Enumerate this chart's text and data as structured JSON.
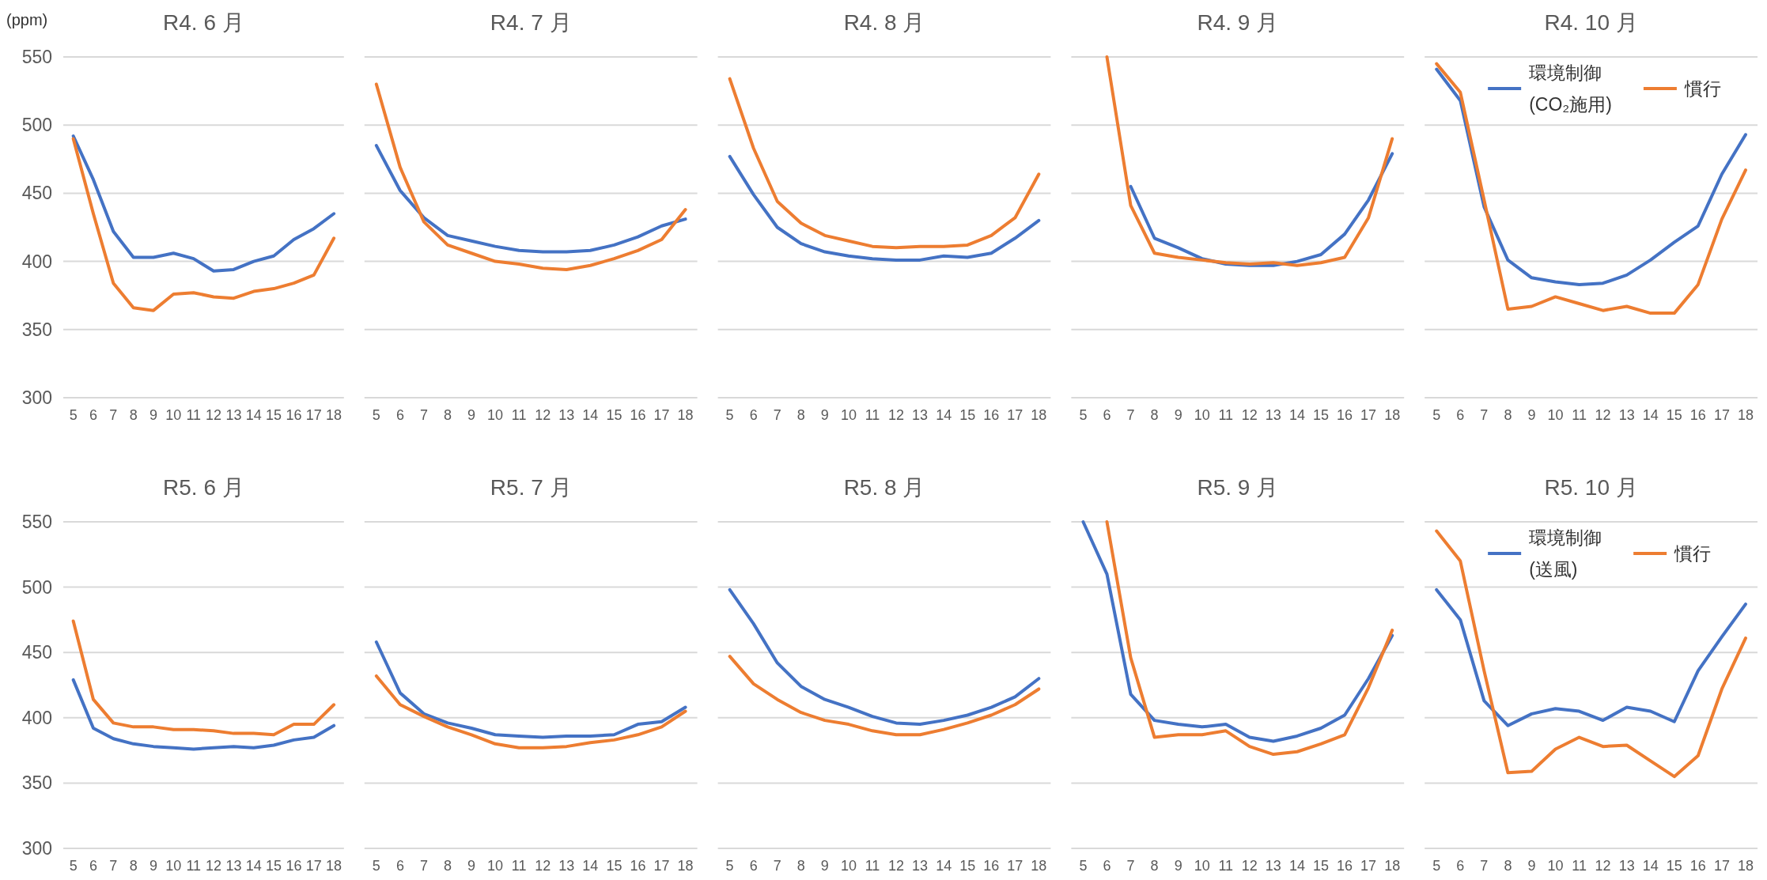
{
  "chart_data": [
    {
      "type": "line",
      "title": "R4. 6 月",
      "ylabel": "(ppm)",
      "categories": [
        "5",
        "6",
        "7",
        "8",
        "9",
        "10",
        "11",
        "12",
        "13",
        "14",
        "15",
        "16",
        "17",
        "18"
      ],
      "ylim": [
        300,
        550
      ],
      "yticks": [
        300,
        350,
        400,
        450,
        500,
        550
      ],
      "grid": "y",
      "series": [
        {
          "color": "#4472c4",
          "values": [
            492,
            460,
            422,
            403,
            403,
            406,
            402,
            393,
            394,
            400,
            404,
            416,
            424,
            435
          ]
        },
        {
          "color": "#ed7d31",
          "values": [
            490,
            435,
            384,
            366,
            364,
            376,
            377,
            374,
            373,
            378,
            380,
            384,
            390,
            417
          ]
        }
      ]
    },
    {
      "type": "line",
      "title": "R4. 7 月",
      "categories": [
        "5",
        "6",
        "7",
        "8",
        "9",
        "10",
        "11",
        "12",
        "13",
        "14",
        "15",
        "16",
        "17",
        "18"
      ],
      "ylim": [
        300,
        550
      ],
      "yticks": [
        300,
        350,
        400,
        450,
        500,
        550
      ],
      "grid": "y",
      "tick_labels": "x",
      "series": [
        {
          "color": "#4472c4",
          "values": [
            485,
            452,
            432,
            419,
            415,
            411,
            408,
            407,
            407,
            408,
            412,
            418,
            426,
            431
          ]
        },
        {
          "color": "#ed7d31",
          "values": [
            530,
            469,
            429,
            412,
            406,
            400,
            398,
            395,
            394,
            397,
            402,
            408,
            416,
            438
          ]
        }
      ]
    },
    {
      "type": "line",
      "title": "R4. 8 月",
      "categories": [
        "5",
        "6",
        "7",
        "8",
        "9",
        "10",
        "11",
        "12",
        "13",
        "14",
        "15",
        "16",
        "17",
        "18"
      ],
      "ylim": [
        300,
        550
      ],
      "yticks": [
        300,
        350,
        400,
        450,
        500,
        550
      ],
      "grid": "y",
      "tick_labels": "x",
      "series": [
        {
          "color": "#4472c4",
          "values": [
            477,
            449,
            425,
            413,
            407,
            404,
            402,
            401,
            401,
            404,
            403,
            406,
            417,
            430
          ]
        },
        {
          "color": "#ed7d31",
          "values": [
            534,
            483,
            444,
            428,
            419,
            415,
            411,
            410,
            411,
            411,
            412,
            419,
            432,
            464
          ]
        }
      ]
    },
    {
      "type": "line",
      "title": "R4. 9 月",
      "categories": [
        "5",
        "6",
        "7",
        "8",
        "9",
        "10",
        "11",
        "12",
        "13",
        "14",
        "15",
        "16",
        "17",
        "18"
      ],
      "ylim": [
        300,
        550
      ],
      "yticks": [
        300,
        350,
        400,
        450,
        500,
        550
      ],
      "grid": "y",
      "tick_labels": "x",
      "series": [
        {
          "color": "#4472c4",
          "values": [
            null,
            null,
            455,
            417,
            410,
            402,
            398,
            397,
            397,
            400,
            405,
            420,
            445,
            479
          ]
        },
        {
          "color": "#ed7d31",
          "values": [
            null,
            550,
            441,
            406,
            403,
            401,
            399,
            398,
            399,
            397,
            399,
            403,
            432,
            490
          ]
        }
      ]
    },
    {
      "type": "line",
      "title": "R4. 10 月",
      "categories": [
        "5",
        "6",
        "7",
        "8",
        "9",
        "10",
        "11",
        "12",
        "13",
        "14",
        "15",
        "16",
        "17",
        "18"
      ],
      "ylim": [
        300,
        550
      ],
      "yticks": [
        300,
        350,
        400,
        450,
        500,
        550
      ],
      "grid": "y",
      "tick_labels": "x",
      "legend": "top",
      "series": [
        {
          "name": "環境制御 (CO₂施用)",
          "color": "#4472c4",
          "values": [
            541,
            518,
            440,
            401,
            388,
            385,
            383,
            384,
            390,
            401,
            414,
            426,
            464,
            493
          ]
        },
        {
          "name": "慣行",
          "color": "#ed7d31",
          "values": [
            545,
            524,
            445,
            365,
            367,
            374,
            369,
            364,
            367,
            362,
            362,
            383,
            431,
            467
          ]
        }
      ]
    },
    {
      "type": "line",
      "title": "R5. 6 月",
      "categories": [
        "5",
        "6",
        "7",
        "8",
        "9",
        "10",
        "11",
        "12",
        "13",
        "14",
        "15",
        "16",
        "17",
        "18"
      ],
      "ylim": [
        300,
        550
      ],
      "yticks": [
        300,
        350,
        400,
        450,
        500,
        550
      ],
      "grid": "y",
      "series": [
        {
          "color": "#4472c4",
          "values": [
            429,
            392,
            384,
            380,
            378,
            377,
            376,
            377,
            378,
            377,
            379,
            383,
            385,
            394
          ]
        },
        {
          "color": "#ed7d31",
          "values": [
            474,
            414,
            396,
            393,
            393,
            391,
            391,
            390,
            388,
            388,
            387,
            395,
            395,
            410
          ]
        }
      ]
    },
    {
      "type": "line",
      "title": "R5. 7 月",
      "categories": [
        "5",
        "6",
        "7",
        "8",
        "9",
        "10",
        "11",
        "12",
        "13",
        "14",
        "15",
        "16",
        "17",
        "18"
      ],
      "ylim": [
        300,
        550
      ],
      "yticks": [
        300,
        350,
        400,
        450,
        500,
        550
      ],
      "grid": "y",
      "tick_labels": "x",
      "series": [
        {
          "color": "#4472c4",
          "values": [
            458,
            419,
            403,
            396,
            392,
            387,
            386,
            385,
            386,
            386,
            387,
            395,
            397,
            408
          ]
        },
        {
          "color": "#ed7d31",
          "values": [
            432,
            410,
            401,
            393,
            387,
            380,
            377,
            377,
            378,
            381,
            383,
            387,
            393,
            405
          ]
        }
      ]
    },
    {
      "type": "line",
      "title": "R5. 8 月",
      "categories": [
        "5",
        "6",
        "7",
        "8",
        "9",
        "10",
        "11",
        "12",
        "13",
        "14",
        "15",
        "16",
        "17",
        "18"
      ],
      "ylim": [
        300,
        550
      ],
      "yticks": [
        300,
        350,
        400,
        450,
        500,
        550
      ],
      "grid": "y",
      "tick_labels": "x",
      "series": [
        {
          "color": "#4472c4",
          "values": [
            498,
            472,
            442,
            424,
            414,
            408,
            401,
            396,
            395,
            398,
            402,
            408,
            416,
            430
          ]
        },
        {
          "color": "#ed7d31",
          "values": [
            447,
            426,
            414,
            404,
            398,
            395,
            390,
            387,
            387,
            391,
            396,
            402,
            410,
            422
          ]
        }
      ]
    },
    {
      "type": "line",
      "title": "R5. 9 月",
      "categories": [
        "5",
        "6",
        "7",
        "8",
        "9",
        "10",
        "11",
        "12",
        "13",
        "14",
        "15",
        "16",
        "17",
        "18"
      ],
      "ylim": [
        300,
        550
      ],
      "yticks": [
        300,
        350,
        400,
        450,
        500,
        550
      ],
      "grid": "y",
      "tick_labels": "x",
      "series": [
        {
          "color": "#4472c4",
          "values": [
            550,
            510,
            418,
            398,
            395,
            393,
            395,
            385,
            382,
            386,
            392,
            402,
            430,
            463
          ]
        },
        {
          "color": "#ed7d31",
          "values": [
            null,
            550,
            446,
            385,
            387,
            387,
            390,
            378,
            372,
            374,
            380,
            387,
            423,
            467
          ]
        }
      ]
    },
    {
      "type": "line",
      "title": "R5. 10 月",
      "categories": [
        "5",
        "6",
        "7",
        "8",
        "9",
        "10",
        "11",
        "12",
        "13",
        "14",
        "15",
        "16",
        "17",
        "18"
      ],
      "ylim": [
        300,
        550
      ],
      "yticks": [
        300,
        350,
        400,
        450,
        500,
        550
      ],
      "grid": "y",
      "tick_labels": "x",
      "legend": "top",
      "series": [
        {
          "name": "環境制御 (送風)",
          "color": "#4472c4",
          "values": [
            498,
            475,
            413,
            394,
            403,
            407,
            405,
            398,
            408,
            405,
            397,
            436,
            462,
            487
          ]
        },
        {
          "name": "慣行",
          "color": "#ed7d31",
          "values": [
            543,
            520,
            436,
            358,
            359,
            376,
            385,
            378,
            379,
            367,
            355,
            371,
            422,
            461
          ]
        }
      ]
    }
  ]
}
